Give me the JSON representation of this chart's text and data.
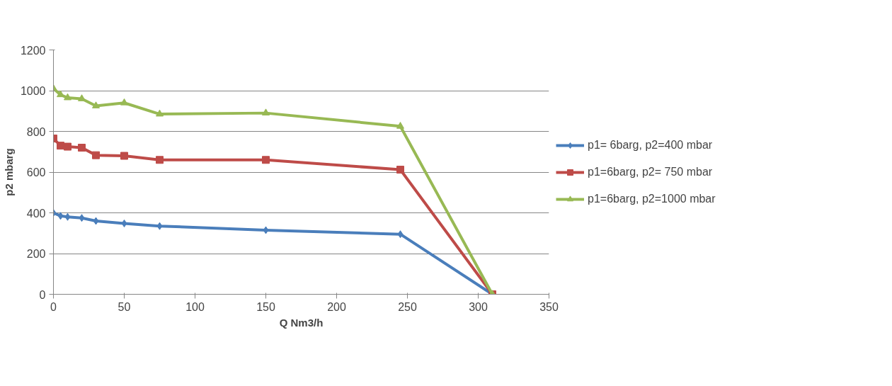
{
  "chart_data": {
    "type": "line",
    "xlabel": "Q Nm3/h",
    "ylabel": "p2 mbarg",
    "x": [
      0,
      5,
      10,
      20,
      30,
      50,
      75,
      150,
      245,
      310
    ],
    "series": [
      {
        "name": "p1= 6barg, p2=400 mbar",
        "color": "#4a7ebb",
        "marker": "diamond",
        "values": [
          400,
          385,
          380,
          375,
          360,
          348,
          335,
          315,
          295,
          0
        ]
      },
      {
        "name": "p1=6barg, p2= 750 mbar",
        "color": "#be4b48",
        "marker": "square",
        "values": [
          765,
          730,
          725,
          720,
          683,
          680,
          660,
          660,
          612,
          0
        ]
      },
      {
        "name": "p1=6barg, p2=1000 mbar",
        "color": "#98b954",
        "marker": "triangle",
        "values": [
          1010,
          980,
          965,
          960,
          925,
          940,
          885,
          890,
          825,
          0
        ]
      }
    ],
    "xlim": [
      0,
      350
    ],
    "xticks": [
      0,
      50,
      100,
      150,
      200,
      250,
      300,
      350
    ],
    "ylim": [
      0,
      1200
    ],
    "yticks": [
      0,
      200,
      400,
      600,
      800,
      1000,
      1200
    ],
    "grid": "y",
    "legend": "right"
  }
}
